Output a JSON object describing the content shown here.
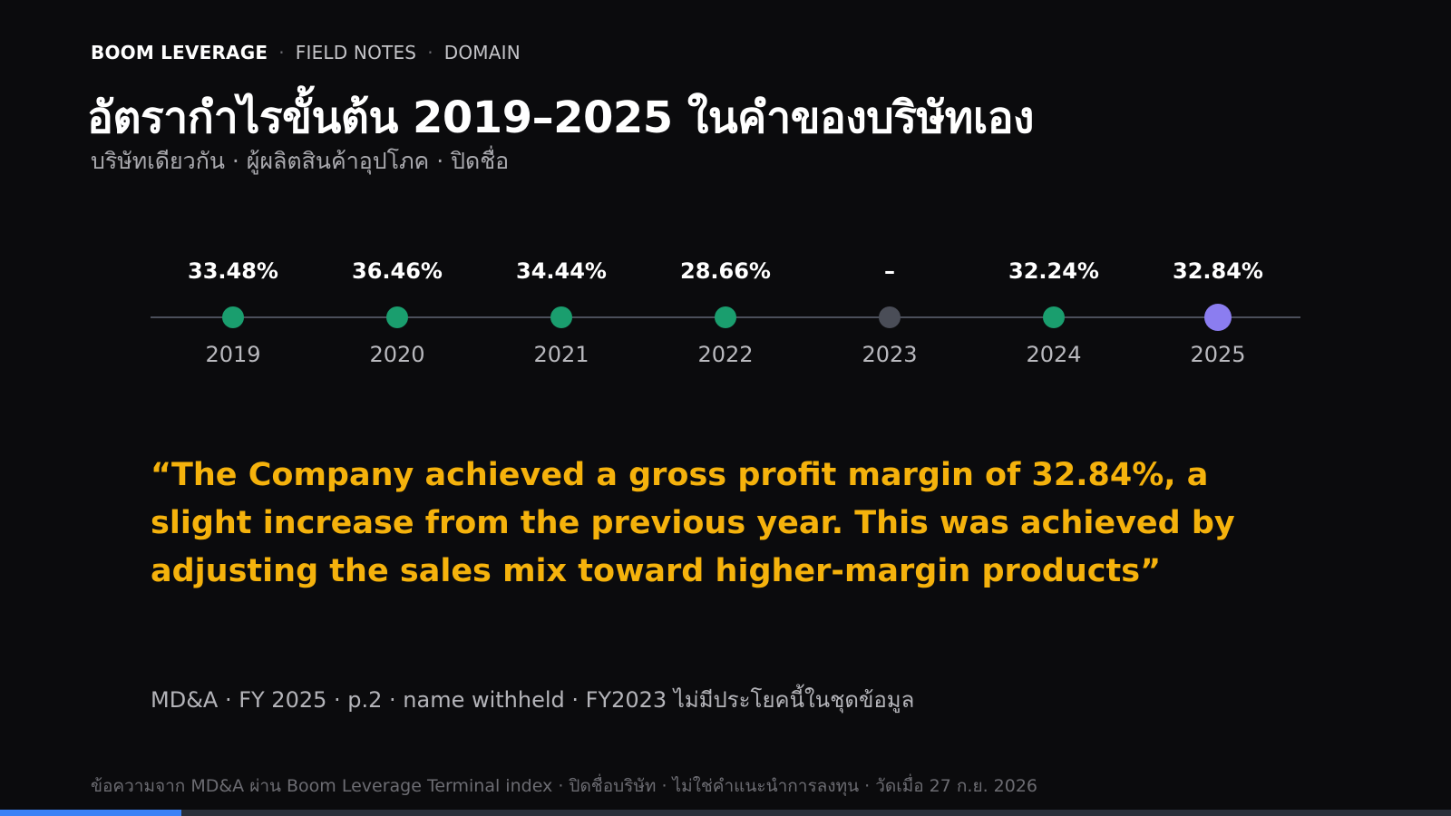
{
  "header": {
    "brand": "BOOM LEVERAGE",
    "section": "FIELD NOTES",
    "category": "DOMAIN",
    "separator": "·"
  },
  "title": "อัตรากำไรขั้นต้น 2019–2025 ในคำของบริษัทเอง",
  "subtitle": "บริษัทเดียวกัน · ผู้ผลิตสินค้าอุปโภค · ปิดชื่อ",
  "chart_data": {
    "type": "timeline",
    "x": [
      "2019",
      "2020",
      "2021",
      "2022",
      "2023",
      "2024",
      "2025"
    ],
    "values": [
      33.48,
      36.46,
      34.44,
      28.66,
      null,
      32.24,
      32.84
    ],
    "labels": [
      "33.48%",
      "36.46%",
      "34.44%",
      "28.66%",
      "–",
      "32.24%",
      "32.84%"
    ],
    "highlight": "2025",
    "colors": {
      "line": "#4b4f5a",
      "point": "#1a9e6e",
      "missing": "#4a4d57",
      "highlight": "#8b7df0",
      "value_text": "#ffffff",
      "year_text": "#b9b9be"
    }
  },
  "quote": "“The Company achieved a gross profit margin of 32.84%, a slight increase from the previous year. This was achieved by adjusting the sales mix toward higher-margin products”",
  "source": "MD&A · FY 2025 · p.2 · name withheld · FY2023 ไม่มีประโยคนี้ในชุดข้อมูล",
  "footer": "ข้อความจาก MD&A ผ่าน Boom Leverage Terminal index · ปิดชื่อบริษัท · ไม่ใช่คำแนะนำการลงทุน · วัดเมื่อ 27 ก.ย. 2026",
  "progress": {
    "fraction": 0.125,
    "color": "#3b82f6"
  }
}
